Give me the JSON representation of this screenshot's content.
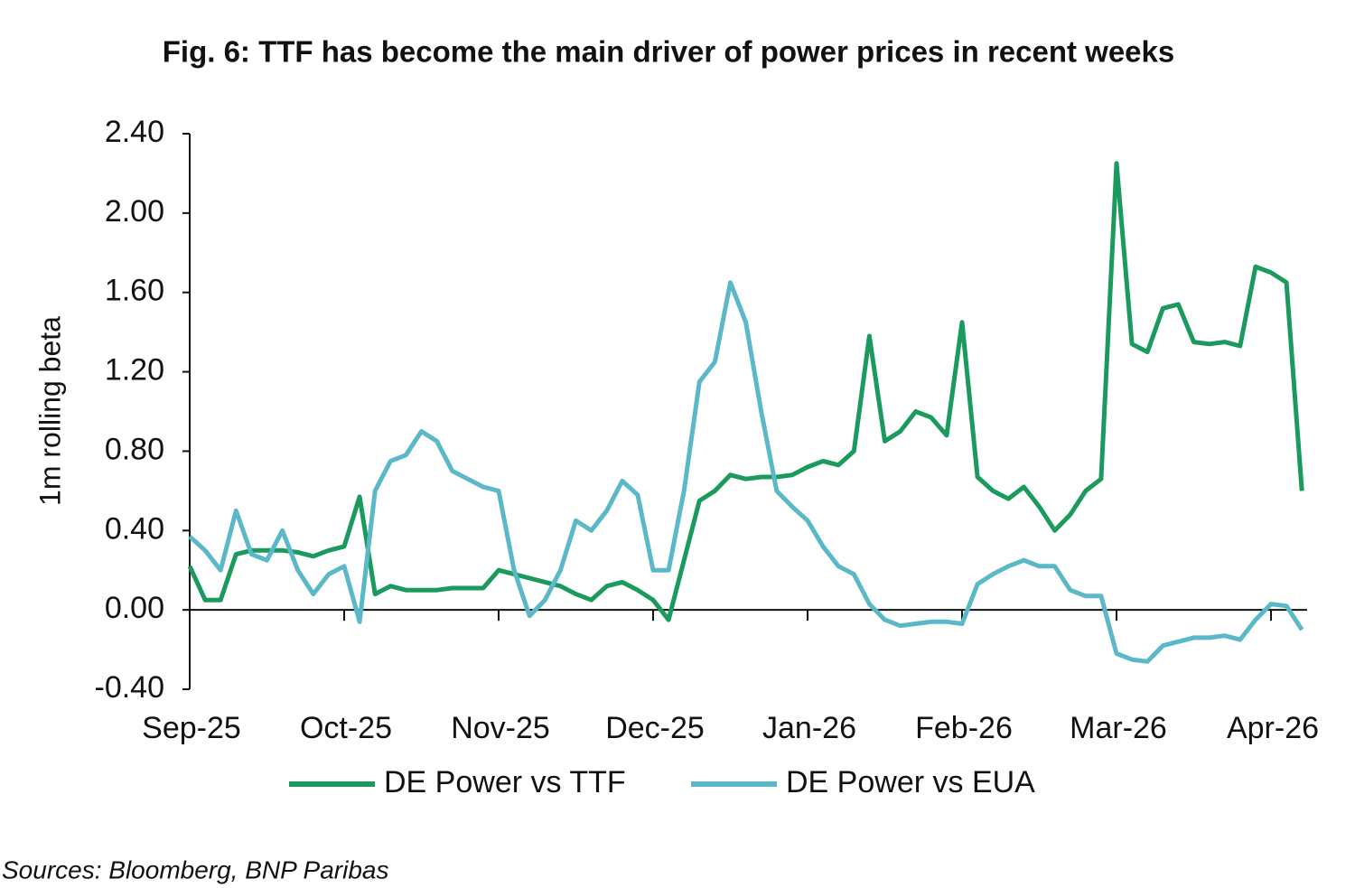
{
  "chart_data": {
    "type": "line",
    "title": "Fig. 6: TTF has become the main driver of power prices in recent weeks",
    "y_label": "1m rolling beta",
    "source": "Sources: Bloomberg,  BNP Paribas",
    "categories": [
      "Sep-25",
      null,
      null,
      null,
      null,
      null,
      null,
      null,
      null,
      null,
      "Oct-25",
      null,
      null,
      null,
      null,
      null,
      null,
      null,
      null,
      null,
      "Nov-25",
      null,
      null,
      null,
      null,
      null,
      null,
      null,
      null,
      null,
      "Dec-25",
      null,
      null,
      null,
      null,
      null,
      null,
      null,
      null,
      null,
      "Jan-26",
      null,
      null,
      null,
      null,
      null,
      null,
      null,
      null,
      null,
      "Feb-26",
      null,
      null,
      null,
      null,
      null,
      null,
      null,
      null,
      null,
      "Mar-26",
      null,
      null,
      null,
      null,
      null,
      null,
      null,
      null,
      null,
      "Apr-26",
      null,
      null
    ],
    "series": [
      {
        "name": "DE Power vs TTF",
        "color": "#1a9a5c",
        "values": [
          0.22,
          0.05,
          0.05,
          0.28,
          0.3,
          0.3,
          0.3,
          0.29,
          0.27,
          0.3,
          0.32,
          0.57,
          0.08,
          0.12,
          0.1,
          0.1,
          0.1,
          0.11,
          0.11,
          0.11,
          0.2,
          0.18,
          0.16,
          0.14,
          0.12,
          0.08,
          0.05,
          0.12,
          0.14,
          0.1,
          0.05,
          -0.05,
          0.25,
          0.55,
          0.6,
          0.68,
          0.66,
          0.67,
          0.67,
          0.68,
          0.72,
          0.75,
          0.73,
          0.8,
          1.38,
          0.85,
          0.9,
          1.0,
          0.97,
          0.88,
          1.45,
          0.67,
          0.6,
          0.56,
          0.62,
          0.52,
          0.4,
          0.48,
          0.6,
          0.66,
          2.25,
          1.34,
          1.3,
          1.52,
          1.54,
          1.35,
          1.34,
          1.35,
          1.33,
          1.73,
          1.7,
          1.65,
          0.6
        ]
      },
      {
        "name": "DE Power vs EUA",
        "color": "#5bb8c8",
        "values": [
          0.37,
          0.3,
          0.2,
          0.5,
          0.28,
          0.25,
          0.4,
          0.2,
          0.08,
          0.18,
          0.22,
          -0.06,
          0.6,
          0.75,
          0.78,
          0.9,
          0.85,
          0.7,
          0.66,
          0.62,
          0.6,
          0.2,
          -0.03,
          0.05,
          0.2,
          0.45,
          0.4,
          0.5,
          0.65,
          0.58,
          0.2,
          0.2,
          0.6,
          1.15,
          1.25,
          1.65,
          1.45,
          1.0,
          0.6,
          0.52,
          0.45,
          0.32,
          0.22,
          0.18,
          0.03,
          -0.05,
          -0.08,
          -0.07,
          -0.06,
          -0.06,
          -0.07,
          0.13,
          0.18,
          0.22,
          0.25,
          0.22,
          0.22,
          0.1,
          0.07,
          0.07,
          -0.22,
          -0.25,
          -0.26,
          -0.18,
          -0.16,
          -0.14,
          -0.14,
          -0.13,
          -0.15,
          -0.05,
          0.03,
          0.02,
          -0.1
        ]
      }
    ],
    "ylim": [
      -0.4,
      2.4
    ],
    "yticks": [
      {
        "value": -0.4,
        "label": "-0.40"
      },
      {
        "value": 0,
        "label": "0.00"
      },
      {
        "value": 0.4,
        "label": "0.40"
      },
      {
        "value": 0.8,
        "label": "0.80"
      },
      {
        "value": 1.2,
        "label": "1.20"
      },
      {
        "value": 1.6,
        "label": "1.60"
      },
      {
        "value": 2,
        "label": "2.00"
      },
      {
        "value": 2.4,
        "label": "2.40"
      }
    ],
    "grid": false,
    "legend": "bottom"
  }
}
